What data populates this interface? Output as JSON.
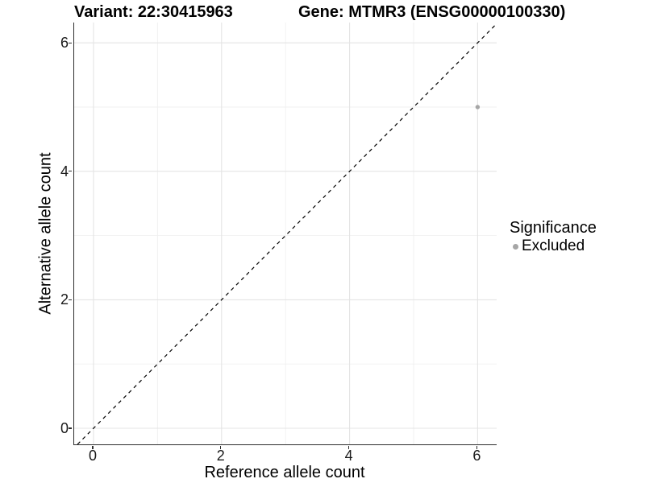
{
  "chart_data": {
    "type": "scatter",
    "titles": {
      "left": "Variant: 22:30415963",
      "right": "Gene: MTMR3 (ENSG00000100330)"
    },
    "xlabel": "Reference allele count",
    "ylabel": "Alternative allele count",
    "xlim": [
      -0.3,
      6.3
    ],
    "ylim": [
      -0.25,
      6.32
    ],
    "x_ticks": [
      0,
      2,
      4,
      6
    ],
    "y_ticks": [
      0,
      2,
      4,
      6
    ],
    "grid": {
      "major": [
        0,
        2,
        4,
        6
      ],
      "minor": [
        1,
        3,
        5
      ],
      "major_color": "#e4e4e4",
      "minor_color": "#f0f0f0"
    },
    "identity_line": {
      "slope": 1,
      "intercept": 0,
      "style": "dashed",
      "color": "#000000"
    },
    "series": [
      {
        "name": "Excluded",
        "color": "#a6a6a6",
        "points": [
          [
            6,
            5
          ]
        ]
      }
    ],
    "legend": {
      "title": "Significance",
      "position": "right",
      "items": [
        {
          "label": "Excluded",
          "color": "#a6a6a6",
          "marker": "circle"
        }
      ]
    },
    "colors": {
      "axis_line": "#2e2e2e",
      "background": "#ffffff"
    }
  }
}
